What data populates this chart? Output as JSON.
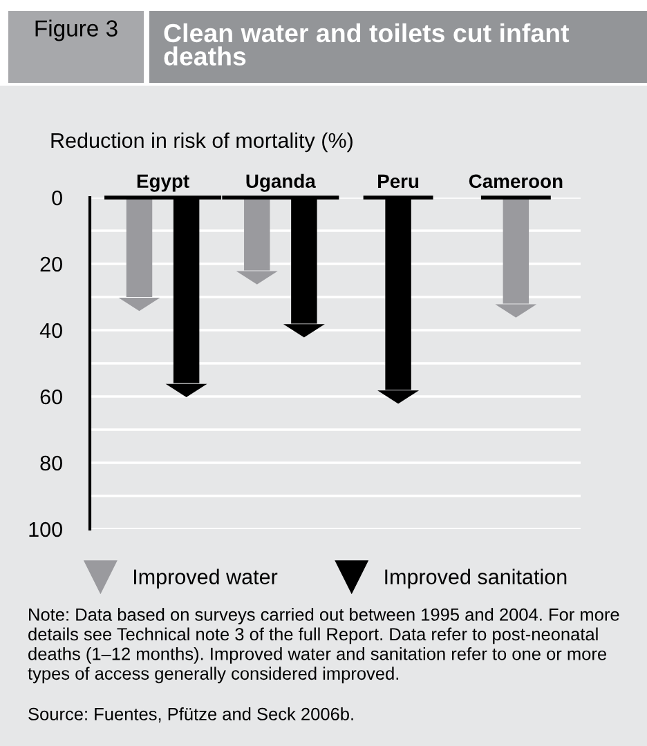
{
  "chart_data": {
    "type": "bar",
    "title": "Clean water and toilets cut infant deaths",
    "ylabel": "Reduction in risk of mortality (%)",
    "categories": [
      "Egypt",
      "Uganda",
      "Peru",
      "Cameroon"
    ],
    "series": [
      {
        "name": "Improved water",
        "color": "#9a9a9e",
        "values": [
          30,
          22,
          null,
          32
        ]
      },
      {
        "name": "Improved sanitation",
        "color": "#000000",
        "values": [
          56,
          38,
          58,
          null
        ]
      }
    ],
    "ylim": [
      100,
      0
    ],
    "yticks": [
      0,
      {
        "value": 10,
        "label": null
      },
      20,
      {
        "value": 30,
        "label": null
      },
      40,
      {
        "value": 50,
        "label": null
      },
      60,
      {
        "value": 70,
        "label": null
      },
      80,
      {
        "value": 90,
        "label": null
      },
      100
    ],
    "grid": "y",
    "legend": "bottom",
    "annotations": [
      "Figure 3",
      "Note: Data based on surveys carried out between 1995 and 2004. For more details see Technical note 3 of the full Report. Data refer to post-neonatal deaths (1–12 months). Improved water and sanitation refer to one or more types of access generally considered improved.",
      "Source: Fuentes, Pfütze and Seck 2006b."
    ]
  }
}
